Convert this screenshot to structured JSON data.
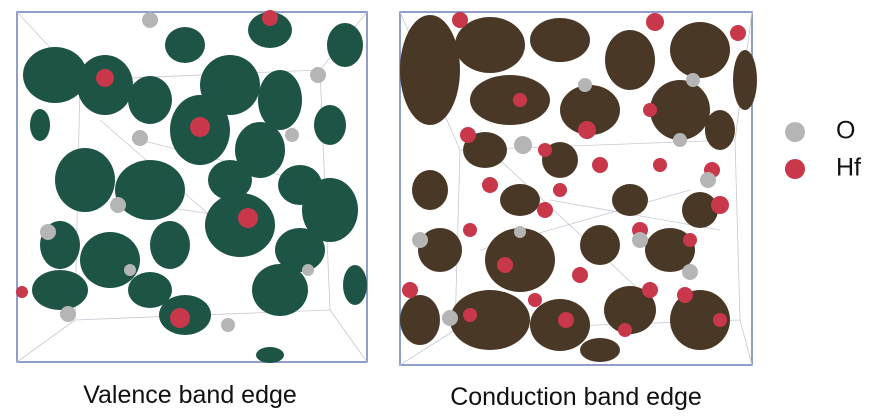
{
  "panels": [
    {
      "caption": "Valence band edge"
    },
    {
      "caption": "Conduction band edge"
    }
  ],
  "legend": [
    {
      "label": "O",
      "color": "#b5b5b5"
    },
    {
      "label": "Hf",
      "color": "#c8374a"
    }
  ]
}
